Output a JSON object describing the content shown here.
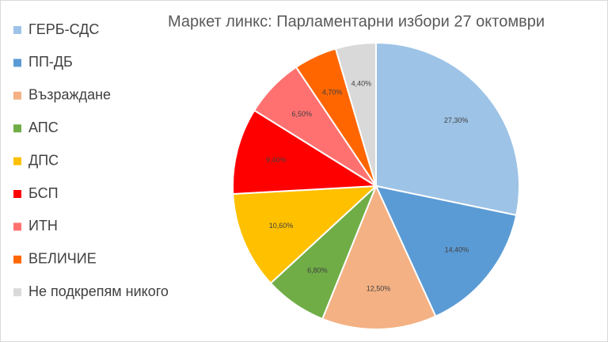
{
  "chart_data": {
    "type": "pie",
    "title": "Маркет линкс: Парламентарни избори 27 октомври",
    "categories": [
      "ГЕРБ-СДС",
      "ПП-ДБ",
      "Възраждане",
      "АПС",
      "ДПС",
      "БСП",
      "ИТН",
      "ВЕЛИЧИЕ",
      "Не подкрепям никого"
    ],
    "values": [
      27.3,
      14.4,
      12.5,
      6.8,
      10.6,
      9.4,
      6.5,
      4.7,
      4.4
    ],
    "value_labels": [
      "27,30%",
      "14,40%",
      "12,50%",
      "6,80%",
      "10,60%",
      "9,40%",
      "6,50%",
      "4,70%",
      "4,40%"
    ],
    "colors": [
      "#9dc3e6",
      "#5b9bd5",
      "#f4b183",
      "#70ad47",
      "#ffc000",
      "#ff0000",
      "#ff7171",
      "#ff6600",
      "#d9d9d9"
    ],
    "legend": "left"
  }
}
